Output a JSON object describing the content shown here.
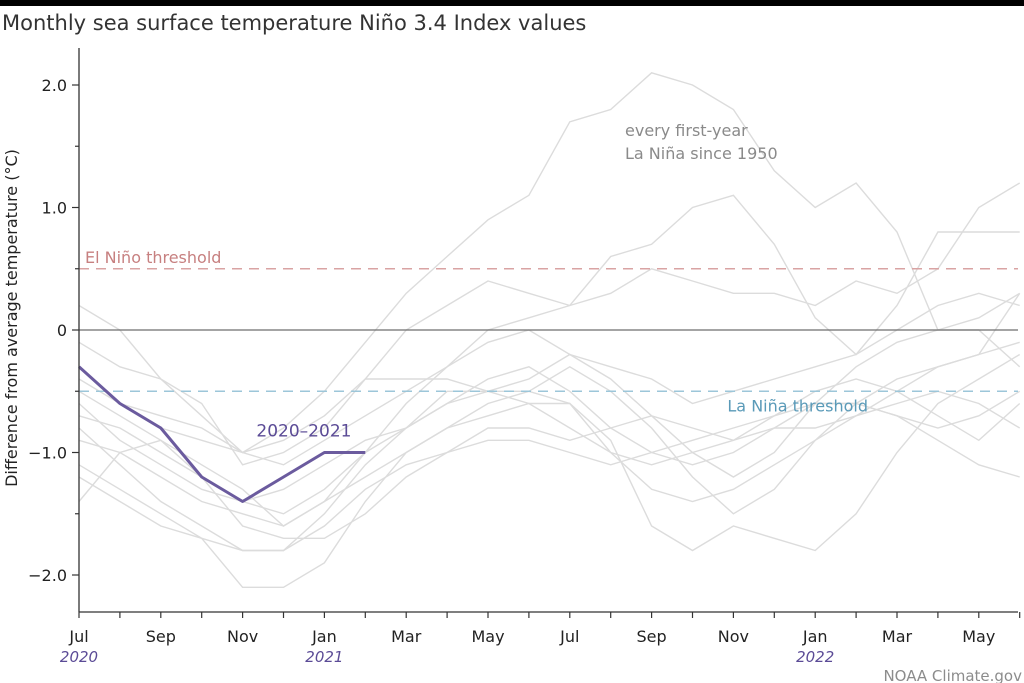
{
  "chart_data": {
    "type": "line",
    "title": "Monthly sea surface temperature Niño 3.4 Index values",
    "ylabel": "Difference from average temperature (°C)",
    "xlabel": "",
    "ylim": [
      -2.3,
      2.3
    ],
    "xlim": [
      0,
      23
    ],
    "grid": false,
    "x_ticks": [
      {
        "x": 0,
        "label": "Jul"
      },
      {
        "x": 2,
        "label": "Sep"
      },
      {
        "x": 4,
        "label": "Nov"
      },
      {
        "x": 6,
        "label": "Jan"
      },
      {
        "x": 8,
        "label": "Mar"
      },
      {
        "x": 10,
        "label": "May"
      },
      {
        "x": 12,
        "label": "Jul"
      },
      {
        "x": 14,
        "label": "Sep"
      },
      {
        "x": 16,
        "label": "Nov"
      },
      {
        "x": 18,
        "label": "Jan"
      },
      {
        "x": 20,
        "label": "Mar"
      },
      {
        "x": 22,
        "label": "May"
      }
    ],
    "year_labels": [
      {
        "x": 0,
        "label": "2020"
      },
      {
        "x": 6,
        "label": "2021"
      },
      {
        "x": 18,
        "label": "2022"
      }
    ],
    "y_ticks": [
      {
        "y": 2.0,
        "label": "2.0"
      },
      {
        "y": 1.0,
        "label": "1.0"
      },
      {
        "y": 0,
        "label": "0"
      },
      {
        "y": -1.0,
        "label": "−1.0"
      },
      {
        "y": -2.0,
        "label": "−2.0"
      }
    ],
    "thresholds": [
      {
        "name": "El Niño threshold",
        "value": 0.5,
        "color": "#d9a3a3"
      },
      {
        "name": "La Niña threshold",
        "value": -0.5,
        "color": "#9cc6d9"
      }
    ],
    "background_series_label": "every first-year La Niña since 1950",
    "background_series": [
      [
        -0.3,
        -0.6,
        -0.7,
        -0.8,
        -1.0,
        -0.8,
        -0.5,
        -0.1,
        0.3,
        0.6,
        0.9,
        1.1,
        1.7,
        1.8,
        2.1,
        2.0,
        1.8,
        1.3,
        1.0,
        1.2,
        0.8,
        0.0,
        0.0,
        -0.3
      ],
      [
        -0.1,
        -0.3,
        -0.4,
        -0.6,
        -1.1,
        -1.0,
        -0.8,
        -0.4,
        0.0,
        0.2,
        0.4,
        0.3,
        0.2,
        0.6,
        0.7,
        1.0,
        1.1,
        0.7,
        0.1,
        -0.2,
        0.2,
        0.8,
        0.8,
        0.8
      ],
      [
        0.2,
        0.0,
        -0.4,
        -0.7,
        -1.0,
        -1.1,
        -0.9,
        -0.7,
        -0.5,
        -0.3,
        0.0,
        0.1,
        0.2,
        0.3,
        0.5,
        0.4,
        0.3,
        0.3,
        0.2,
        0.4,
        0.3,
        0.5,
        1.0,
        1.2
      ],
      [
        -0.5,
        -0.7,
        -0.9,
        -1.1,
        -1.3,
        -1.6,
        -1.4,
        -1.0,
        -0.6,
        -0.3,
        -0.1,
        0.0,
        -0.2,
        -0.3,
        -0.4,
        -0.6,
        -0.5,
        -0.4,
        -0.3,
        -0.2,
        0.0,
        0.2,
        0.3,
        0.2
      ],
      [
        -0.8,
        -1.1,
        -1.4,
        -1.6,
        -1.8,
        -1.8,
        -1.5,
        -1.1,
        -0.8,
        -0.5,
        -0.5,
        -0.4,
        -0.2,
        -0.4,
        -0.7,
        -1.0,
        -1.2,
        -1.0,
        -0.6,
        -0.3,
        -0.1,
        0.0,
        0.1,
        0.3
      ],
      [
        -1.1,
        -1.3,
        -1.5,
        -1.7,
        -2.1,
        -2.1,
        -1.9,
        -1.4,
        -1.0,
        -0.8,
        -0.7,
        -0.6,
        -0.6,
        -0.9,
        -1.6,
        -1.8,
        -1.6,
        -1.7,
        -1.8,
        -1.5,
        -1.0,
        -0.6,
        -0.4,
        -0.2
      ],
      [
        -0.7,
        -0.8,
        -1.0,
        -1.2,
        -1.4,
        -1.5,
        -1.3,
        -1.0,
        -0.8,
        -0.6,
        -0.5,
        -0.5,
        -0.3,
        -0.5,
        -0.8,
        -1.2,
        -1.5,
        -1.3,
        -0.9,
        -0.6,
        -0.4,
        -0.3,
        -0.2,
        -0.1
      ],
      [
        -1.4,
        -1.0,
        -0.9,
        -1.2,
        -1.6,
        -1.7,
        -1.7,
        -1.5,
        -1.2,
        -1.0,
        -0.8,
        -0.8,
        -0.9,
        -0.8,
        -0.7,
        -0.8,
        -0.9,
        -0.8,
        -0.8,
        -0.7,
        -0.5,
        -0.3,
        -0.2,
        0.3
      ],
      [
        -0.9,
        -1.0,
        -1.2,
        -1.4,
        -1.5,
        -1.6,
        -1.4,
        -1.2,
        -1.0,
        -0.8,
        -0.6,
        -0.5,
        -0.6,
        -1.0,
        -1.3,
        -1.4,
        -1.3,
        -1.1,
        -0.9,
        -0.7,
        -0.6,
        -0.5,
        -0.6,
        -0.8
      ],
      [
        -0.6,
        -0.9,
        -1.1,
        -1.3,
        -1.4,
        -1.3,
        -1.1,
        -0.9,
        -0.8,
        -0.6,
        -0.4,
        -0.3,
        -0.5,
        -0.8,
        -1.0,
        -1.1,
        -1.0,
        -0.8,
        -0.6,
        -0.6,
        -0.7,
        -0.9,
        -1.1,
        -1.2
      ],
      [
        -0.4,
        -0.6,
        -0.8,
        -0.9,
        -1.0,
        -0.9,
        -0.7,
        -0.4,
        -0.4,
        -0.4,
        -0.5,
        -0.6,
        -0.8,
        -1.0,
        -1.1,
        -1.0,
        -0.9,
        -0.7,
        -0.5,
        -0.4,
        -0.5,
        -0.7,
        -0.9,
        -0.6
      ],
      [
        -1.2,
        -1.4,
        -1.6,
        -1.7,
        -1.8,
        -1.8,
        -1.6,
        -1.3,
        -1.1,
        -1.0,
        -0.9,
        -0.9,
        -1.0,
        -1.1,
        -1.0,
        -0.9,
        -0.8,
        -0.7,
        -0.6,
        -0.6,
        -0.7,
        -0.8,
        -0.7,
        -0.5
      ]
    ],
    "series": [
      {
        "name": "2020–2021",
        "color": "#6b5b9e",
        "x": [
          0,
          1,
          2,
          3,
          4,
          5,
          6,
          7
        ],
        "values": [
          -0.3,
          -0.6,
          -0.8,
          -1.2,
          -1.4,
          -1.2,
          -1.0,
          -1.0
        ]
      }
    ],
    "source": "NOAA Climate.gov"
  }
}
